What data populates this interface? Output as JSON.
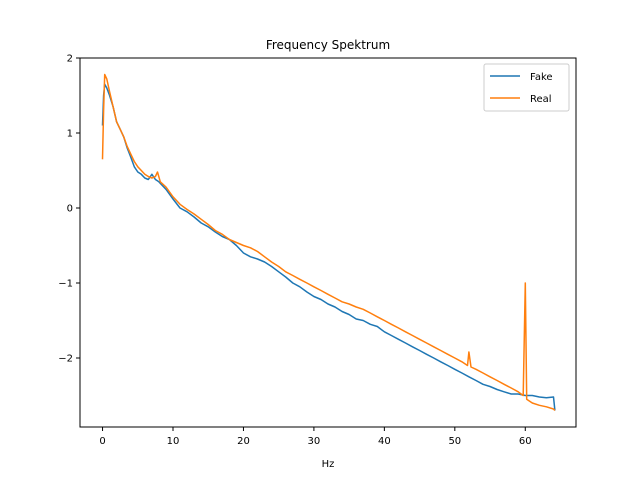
{
  "chart_data": {
    "type": "line",
    "title": "Frequency Spektrum",
    "xlabel": "Hz",
    "ylabel": "",
    "xlim": [
      -3.2,
      67.2
    ],
    "ylim": [
      -2.92,
      2.0
    ],
    "xticks": [
      0,
      10,
      20,
      30,
      40,
      50,
      60
    ],
    "yticks": [
      -2,
      -1,
      0,
      1,
      2
    ],
    "xtick_labels": [
      "0",
      "10",
      "20",
      "30",
      "40",
      "50",
      "60"
    ],
    "ytick_labels": [
      "−2",
      "−1",
      "0",
      "1",
      "2"
    ],
    "grid": false,
    "legend": {
      "position": "top-right",
      "entries": [
        "Fake",
        "Real"
      ]
    },
    "series": [
      {
        "name": "Fake",
        "color": "#1f77b4",
        "points": [
          [
            0,
            1.1
          ],
          [
            0.15,
            1.5
          ],
          [
            0.3,
            1.65
          ],
          [
            0.6,
            1.6
          ],
          [
            1.0,
            1.5
          ],
          [
            1.5,
            1.35
          ],
          [
            2.0,
            1.15
          ],
          [
            2.5,
            1.05
          ],
          [
            3.0,
            0.95
          ],
          [
            3.5,
            0.8
          ],
          [
            4.0,
            0.68
          ],
          [
            4.5,
            0.55
          ],
          [
            5.0,
            0.48
          ],
          [
            5.5,
            0.45
          ],
          [
            6.0,
            0.4
          ],
          [
            6.5,
            0.38
          ],
          [
            7.0,
            0.45
          ],
          [
            7.5,
            0.38
          ],
          [
            8.0,
            0.35
          ],
          [
            9.0,
            0.25
          ],
          [
            10.0,
            0.12
          ],
          [
            11.0,
            0.0
          ],
          [
            12.0,
            -0.05
          ],
          [
            13.0,
            -0.12
          ],
          [
            14.0,
            -0.2
          ],
          [
            15.0,
            -0.25
          ],
          [
            16.0,
            -0.32
          ],
          [
            17.0,
            -0.38
          ],
          [
            18.0,
            -0.42
          ],
          [
            19.0,
            -0.5
          ],
          [
            20.0,
            -0.6
          ],
          [
            21.0,
            -0.65
          ],
          [
            22.0,
            -0.68
          ],
          [
            23.0,
            -0.72
          ],
          [
            24.0,
            -0.78
          ],
          [
            25.0,
            -0.85
          ],
          [
            26.0,
            -0.92
          ],
          [
            27.0,
            -1.0
          ],
          [
            28.0,
            -1.05
          ],
          [
            29.0,
            -1.12
          ],
          [
            30.0,
            -1.18
          ],
          [
            31.0,
            -1.22
          ],
          [
            32.0,
            -1.28
          ],
          [
            33.0,
            -1.32
          ],
          [
            34.0,
            -1.38
          ],
          [
            35.0,
            -1.42
          ],
          [
            36.0,
            -1.48
          ],
          [
            37.0,
            -1.5
          ],
          [
            38.0,
            -1.55
          ],
          [
            39.0,
            -1.58
          ],
          [
            40.0,
            -1.65
          ],
          [
            41.0,
            -1.7
          ],
          [
            42.0,
            -1.75
          ],
          [
            43.0,
            -1.8
          ],
          [
            44.0,
            -1.85
          ],
          [
            45.0,
            -1.9
          ],
          [
            46.0,
            -1.95
          ],
          [
            47.0,
            -2.0
          ],
          [
            48.0,
            -2.05
          ],
          [
            49.0,
            -2.1
          ],
          [
            50.0,
            -2.15
          ],
          [
            51.0,
            -2.2
          ],
          [
            52.0,
            -2.25
          ],
          [
            53.0,
            -2.3
          ],
          [
            54.0,
            -2.35
          ],
          [
            55.0,
            -2.38
          ],
          [
            56.0,
            -2.42
          ],
          [
            57.0,
            -2.45
          ],
          [
            58.0,
            -2.48
          ],
          [
            59.0,
            -2.48
          ],
          [
            60.0,
            -2.5
          ],
          [
            61.0,
            -2.5
          ],
          [
            62.0,
            -2.52
          ],
          [
            63.0,
            -2.53
          ],
          [
            64.0,
            -2.52
          ],
          [
            64.2,
            -2.7
          ]
        ]
      },
      {
        "name": "Real",
        "color": "#ff7f0e",
        "points": [
          [
            0,
            0.65
          ],
          [
            0.15,
            1.3
          ],
          [
            0.3,
            1.78
          ],
          [
            0.6,
            1.72
          ],
          [
            1.0,
            1.55
          ],
          [
            1.5,
            1.35
          ],
          [
            2.0,
            1.15
          ],
          [
            2.5,
            1.05
          ],
          [
            3.0,
            0.95
          ],
          [
            3.5,
            0.82
          ],
          [
            4.0,
            0.72
          ],
          [
            4.5,
            0.62
          ],
          [
            5.0,
            0.55
          ],
          [
            5.5,
            0.5
          ],
          [
            6.0,
            0.45
          ],
          [
            6.5,
            0.42
          ],
          [
            7.0,
            0.4
          ],
          [
            7.5,
            0.42
          ],
          [
            7.8,
            0.48
          ],
          [
            8.2,
            0.35
          ],
          [
            9.0,
            0.28
          ],
          [
            10.0,
            0.15
          ],
          [
            11.0,
            0.05
          ],
          [
            12.0,
            -0.02
          ],
          [
            13.0,
            -0.08
          ],
          [
            14.0,
            -0.15
          ],
          [
            15.0,
            -0.22
          ],
          [
            16.0,
            -0.3
          ],
          [
            17.0,
            -0.35
          ],
          [
            18.0,
            -0.42
          ],
          [
            19.0,
            -0.46
          ],
          [
            20.0,
            -0.5
          ],
          [
            21.0,
            -0.53
          ],
          [
            22.0,
            -0.58
          ],
          [
            23.0,
            -0.65
          ],
          [
            24.0,
            -0.72
          ],
          [
            25.0,
            -0.78
          ],
          [
            26.0,
            -0.85
          ],
          [
            27.0,
            -0.9
          ],
          [
            28.0,
            -0.95
          ],
          [
            29.0,
            -1.0
          ],
          [
            30.0,
            -1.05
          ],
          [
            31.0,
            -1.1
          ],
          [
            32.0,
            -1.15
          ],
          [
            33.0,
            -1.2
          ],
          [
            34.0,
            -1.25
          ],
          [
            35.0,
            -1.28
          ],
          [
            36.0,
            -1.32
          ],
          [
            37.0,
            -1.35
          ],
          [
            38.0,
            -1.4
          ],
          [
            39.0,
            -1.45
          ],
          [
            40.0,
            -1.5
          ],
          [
            41.0,
            -1.55
          ],
          [
            42.0,
            -1.6
          ],
          [
            43.0,
            -1.65
          ],
          [
            44.0,
            -1.7
          ],
          [
            45.0,
            -1.75
          ],
          [
            46.0,
            -1.8
          ],
          [
            47.0,
            -1.85
          ],
          [
            48.0,
            -1.9
          ],
          [
            49.0,
            -1.95
          ],
          [
            50.0,
            -2.0
          ],
          [
            51.0,
            -2.05
          ],
          [
            51.8,
            -2.1
          ],
          [
            52.0,
            -1.92
          ],
          [
            52.3,
            -2.12
          ],
          [
            53.0,
            -2.15
          ],
          [
            54.0,
            -2.2
          ],
          [
            55.0,
            -2.25
          ],
          [
            56.0,
            -2.3
          ],
          [
            57.0,
            -2.35
          ],
          [
            58.0,
            -2.4
          ],
          [
            59.0,
            -2.45
          ],
          [
            59.7,
            -2.5
          ],
          [
            60.0,
            -1.0
          ],
          [
            60.2,
            -2.55
          ],
          [
            61.0,
            -2.6
          ],
          [
            62.0,
            -2.63
          ],
          [
            63.0,
            -2.65
          ],
          [
            64.0,
            -2.68
          ],
          [
            64.2,
            -2.7
          ]
        ]
      }
    ]
  }
}
